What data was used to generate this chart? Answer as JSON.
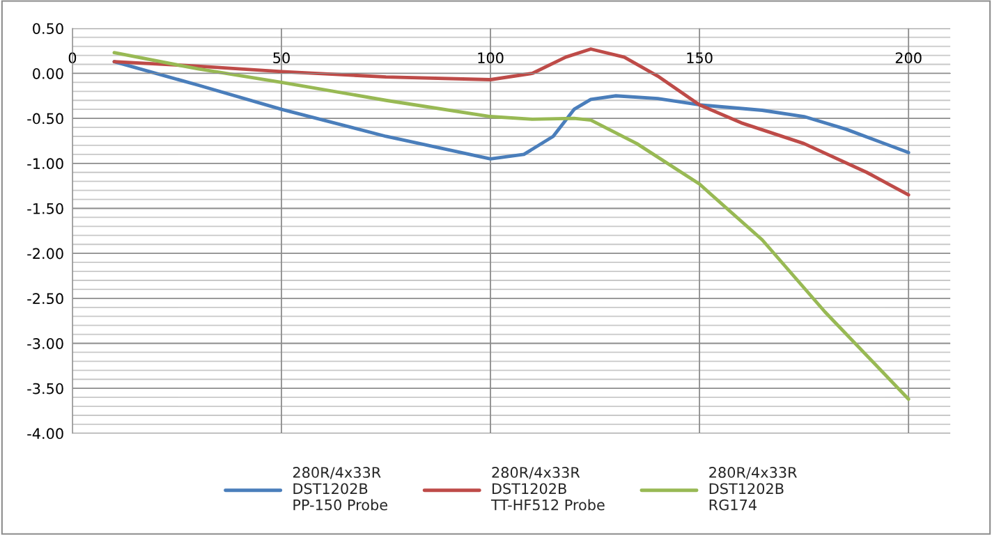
{
  "chart_data": {
    "type": "line",
    "xlim": [
      0,
      210
    ],
    "xticks": [
      0,
      50,
      100,
      150,
      200
    ],
    "ylim": [
      -4.0,
      0.5
    ],
    "yticks": [
      {
        "value": 0.5,
        "label": "0.50"
      },
      {
        "value": 0.4,
        "label": null
      },
      {
        "value": 0.3,
        "label": null
      },
      {
        "value": 0.2,
        "label": null
      },
      {
        "value": 0.1,
        "label": null
      },
      {
        "value": 0.0,
        "label": "0.00"
      },
      {
        "value": -0.1,
        "label": null
      },
      {
        "value": -0.2,
        "label": null
      },
      {
        "value": -0.3,
        "label": null
      },
      {
        "value": -0.4,
        "label": null
      },
      {
        "value": -0.5,
        "label": "-0.50"
      },
      {
        "value": -0.6,
        "label": null
      },
      {
        "value": -0.7,
        "label": null
      },
      {
        "value": -0.8,
        "label": null
      },
      {
        "value": -0.9,
        "label": null
      },
      {
        "value": -1.0,
        "label": "-1.00"
      },
      {
        "value": -1.1,
        "label": null
      },
      {
        "value": -1.2,
        "label": null
      },
      {
        "value": -1.3,
        "label": null
      },
      {
        "value": -1.4,
        "label": null
      },
      {
        "value": -1.5,
        "label": "-1.50"
      },
      {
        "value": -1.6,
        "label": null
      },
      {
        "value": -1.7,
        "label": null
      },
      {
        "value": -1.8,
        "label": null
      },
      {
        "value": -1.9,
        "label": null
      },
      {
        "value": -2.0,
        "label": "-2.00"
      },
      {
        "value": -2.1,
        "label": null
      },
      {
        "value": -2.2,
        "label": null
      },
      {
        "value": -2.3,
        "label": null
      },
      {
        "value": -2.4,
        "label": null
      },
      {
        "value": -2.5,
        "label": "-2.50"
      },
      {
        "value": -2.6,
        "label": null
      },
      {
        "value": -2.7,
        "label": null
      },
      {
        "value": -2.8,
        "label": null
      },
      {
        "value": -2.9,
        "label": null
      },
      {
        "value": -3.0,
        "label": "-3.00"
      },
      {
        "value": -3.1,
        "label": null
      },
      {
        "value": -3.2,
        "label": null
      },
      {
        "value": -3.3,
        "label": null
      },
      {
        "value": -3.4,
        "label": null
      },
      {
        "value": -3.5,
        "label": "-3.50"
      },
      {
        "value": -3.6,
        "label": null
      },
      {
        "value": -3.7,
        "label": null
      },
      {
        "value": -3.8,
        "label": null
      },
      {
        "value": -3.9,
        "label": null
      },
      {
        "value": -4.0,
        "label": "-4.00"
      }
    ],
    "grid": true,
    "legend": "bottom",
    "marker": "none",
    "line_style": "solid",
    "series": [
      {
        "name": "280R/4x33R\nDST1202B\nPP-150 Probe",
        "color": "#4a7ebb",
        "x": [
          10,
          30,
          50,
          75,
          100,
          108,
          115,
          120,
          124,
          130,
          140,
          150,
          165,
          175,
          185,
          200
        ],
        "values": [
          0.13,
          -0.13,
          -0.4,
          -0.7,
          -0.95,
          -0.9,
          -0.7,
          -0.4,
          -0.29,
          -0.25,
          -0.28,
          -0.35,
          -0.41,
          -0.48,
          -0.62,
          -0.88
        ]
      },
      {
        "name": "280R/4x33R\nDST1202B\nTT-HF512 Probe",
        "color": "#be4b48",
        "x": [
          10,
          30,
          50,
          75,
          100,
          110,
          118,
          124,
          132,
          140,
          150,
          160,
          175,
          190,
          200
        ],
        "values": [
          0.13,
          0.08,
          0.02,
          -0.04,
          -0.07,
          0.0,
          0.18,
          0.27,
          0.18,
          -0.03,
          -0.35,
          -0.55,
          -0.78,
          -1.1,
          -1.35
        ]
      },
      {
        "name": "280R/4x33R\nDST1202B\nRG174",
        "color": "#98b954",
        "x": [
          10,
          30,
          50,
          75,
          100,
          110,
          120,
          124,
          135,
          150,
          165,
          180,
          200
        ],
        "values": [
          0.23,
          0.05,
          -0.1,
          -0.3,
          -0.48,
          -0.51,
          -0.5,
          -0.52,
          -0.78,
          -1.23,
          -1.85,
          -2.65,
          -3.62
        ]
      }
    ]
  }
}
